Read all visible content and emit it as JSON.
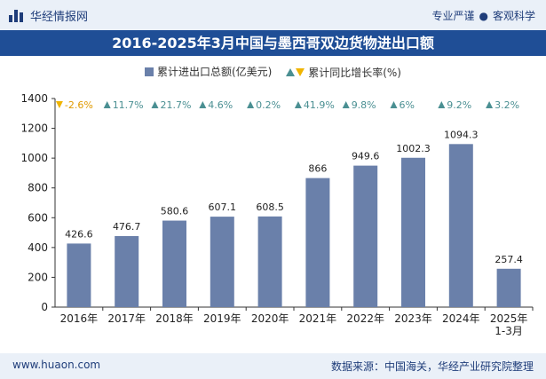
{
  "header": {
    "brand": "华经情报网",
    "tagline_left": "专业严谨",
    "tagline_right": "客观科学"
  },
  "title": "2016-2025年3月中国与墨西哥双边货物进出口额",
  "legend": {
    "bar_label": "累计进出口总额(亿美元)",
    "growth_label": "累计同比增长率(%)"
  },
  "footer": {
    "url": "www.huaon.com",
    "source": "数据来源：中国海关，华经产业研究院整理"
  },
  "colors": {
    "bar": "#6a80aa",
    "up": "#4a8f92",
    "down": "#f0b400",
    "title_bg": "#1f4e96"
  },
  "chart_data": {
    "type": "bar",
    "categories": [
      "2016年",
      "2017年",
      "2018年",
      "2019年",
      "2020年",
      "2021年",
      "2022年",
      "2023年",
      "2024年",
      "2025年\n1-3月"
    ],
    "series": [
      {
        "name": "累计进出口总额(亿美元)",
        "values": [
          426.6,
          476.7,
          580.6,
          607.1,
          608.5,
          866,
          949.6,
          1002.3,
          1094.3,
          257.4
        ]
      },
      {
        "name": "累计同比增长率(%)",
        "values": [
          "-2.6%",
          "11.7%",
          "21.7%",
          "4.6%",
          "0.2%",
          "41.9%",
          "9.8%",
          "6%",
          "9.2%",
          "3.2%"
        ]
      }
    ],
    "ylim": [
      0,
      1400
    ],
    "yticks": [
      0,
      200,
      400,
      600,
      800,
      1000,
      1200,
      1400
    ]
  }
}
